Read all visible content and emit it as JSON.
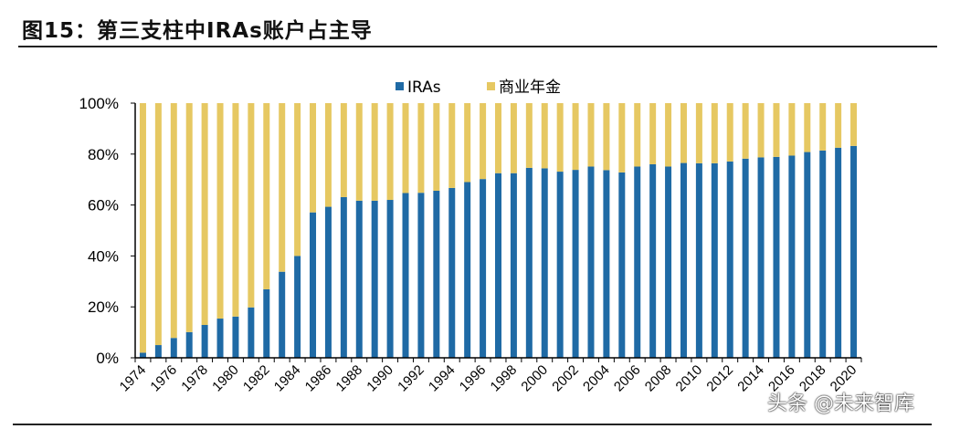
{
  "title": "图15：第三支柱中IRAs账户占主导",
  "watermark": "头条 @未来智库",
  "chart_data": {
    "type": "bar",
    "stacked": true,
    "percent": true,
    "title": "",
    "xlabel": "",
    "ylabel": "",
    "ylim": [
      0,
      100
    ],
    "yticks": [
      "0%",
      "20%",
      "40%",
      "60%",
      "80%",
      "100%"
    ],
    "legend_position": "top-center",
    "grid": false,
    "categories": [
      1974,
      1975,
      1976,
      1977,
      1978,
      1979,
      1980,
      1981,
      1982,
      1983,
      1984,
      1985,
      1986,
      1987,
      1988,
      1989,
      1990,
      1991,
      1992,
      1993,
      1994,
      1995,
      1996,
      1997,
      1998,
      1999,
      2000,
      2001,
      2002,
      2003,
      2004,
      2005,
      2006,
      2007,
      2008,
      2009,
      2010,
      2011,
      2012,
      2013,
      2014,
      2015,
      2016,
      2017,
      2018,
      2019,
      2020
    ],
    "series": [
      {
        "name": "IRAs",
        "color": "#1f6aa5",
        "values": [
          2.0,
          5.0,
          7.8,
          10.1,
          12.9,
          15.4,
          16.2,
          19.8,
          26.9,
          33.8,
          40.0,
          57.1,
          59.3,
          63.1,
          61.7,
          61.7,
          62.0,
          64.7,
          64.8,
          65.6,
          66.7,
          69.0,
          70.2,
          72.5,
          72.5,
          74.6,
          74.4,
          73.1,
          73.8,
          75.1,
          73.7,
          72.8,
          75.1,
          76.0,
          75.1,
          76.5,
          76.4,
          76.4,
          77.1,
          78.2,
          78.7,
          78.9,
          79.4,
          80.8,
          81.4,
          82.5,
          83.2
        ]
      },
      {
        "name": "商业年金",
        "color": "#e6c862",
        "values": [
          98.0,
          95.0,
          92.2,
          89.9,
          87.1,
          84.6,
          83.8,
          80.2,
          73.1,
          66.2,
          60.0,
          42.9,
          40.7,
          36.9,
          38.3,
          38.3,
          38.0,
          35.3,
          35.2,
          34.4,
          33.3,
          31.0,
          29.8,
          27.5,
          27.5,
          25.4,
          25.6,
          26.9,
          26.2,
          24.9,
          26.3,
          27.2,
          24.9,
          24.0,
          24.9,
          23.5,
          23.6,
          23.6,
          22.9,
          21.8,
          21.3,
          21.1,
          20.6,
          19.2,
          18.6,
          17.5,
          16.8
        ]
      }
    ]
  }
}
